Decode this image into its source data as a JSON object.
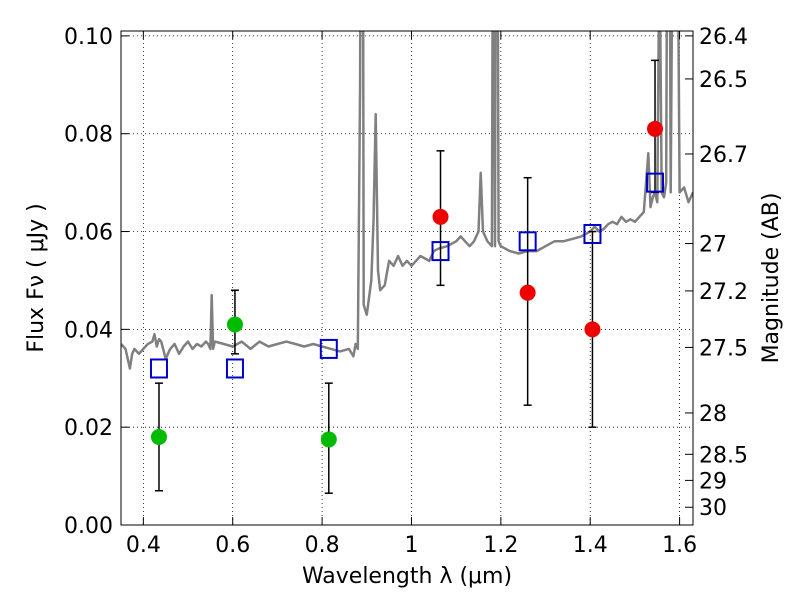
{
  "chart_data": {
    "type": "scatter",
    "title": "",
    "xlabel": "Wavelength  λ (μm)",
    "ylabel": "Flux  Fν  ( μJy )",
    "ylabel_right": "Magnitude (AB)",
    "xlim": [
      0.35,
      1.63
    ],
    "ylim": [
      0.0,
      0.101
    ],
    "grid": true,
    "grid_style": "dotted",
    "x_ticks": [
      {
        "value": 0.4,
        "label": "0.4"
      },
      {
        "value": 0.6,
        "label": "0.6"
      },
      {
        "value": 0.8,
        "label": "0.8"
      },
      {
        "value": 1.0,
        "label": "1"
      },
      {
        "value": 1.2,
        "label": "1.2"
      },
      {
        "value": 1.4,
        "label": "1.4"
      },
      {
        "value": 1.6,
        "label": "1.6"
      }
    ],
    "y_ticks": [
      {
        "value": 0.0,
        "label": "0.00"
      },
      {
        "value": 0.02,
        "label": "0.02"
      },
      {
        "value": 0.04,
        "label": "0.04"
      },
      {
        "value": 0.06,
        "label": "0.06"
      },
      {
        "value": 0.08,
        "label": "0.08"
      },
      {
        "value": 0.1,
        "label": "0.10"
      }
    ],
    "right_ticks": [
      {
        "mag": 26.4,
        "label": "26.4"
      },
      {
        "mag": 26.5,
        "label": "26.5"
      },
      {
        "mag": 26.7,
        "label": "26.7"
      },
      {
        "mag": 27.0,
        "label": "27"
      },
      {
        "mag": 27.2,
        "label": "27.2"
      },
      {
        "mag": 27.5,
        "label": "27.5"
      },
      {
        "mag": 28.0,
        "label": "28"
      },
      {
        "mag": 28.5,
        "label": "28.5"
      },
      {
        "mag": 29.0,
        "label": "29"
      },
      {
        "mag": 30.0,
        "label": "30"
      }
    ],
    "series": [
      {
        "marker": "line",
        "color": "#808080",
        "points": [
          [
            0.35,
            0.037
          ],
          [
            0.36,
            0.036
          ],
          [
            0.365,
            0.034
          ],
          [
            0.37,
            0.032
          ],
          [
            0.375,
            0.035
          ],
          [
            0.38,
            0.036
          ],
          [
            0.39,
            0.035
          ],
          [
            0.4,
            0.036
          ],
          [
            0.41,
            0.037
          ],
          [
            0.42,
            0.0375
          ],
          [
            0.425,
            0.039
          ],
          [
            0.43,
            0.0365
          ],
          [
            0.435,
            0.038
          ],
          [
            0.44,
            0.0375
          ],
          [
            0.45,
            0.034
          ],
          [
            0.46,
            0.036
          ],
          [
            0.47,
            0.037
          ],
          [
            0.48,
            0.035
          ],
          [
            0.49,
            0.0365
          ],
          [
            0.5,
            0.0375
          ],
          [
            0.51,
            0.036
          ],
          [
            0.52,
            0.037
          ],
          [
            0.53,
            0.0365
          ],
          [
            0.54,
            0.0375
          ],
          [
            0.545,
            0.037
          ],
          [
            0.55,
            0.036
          ],
          [
            0.553,
            0.047
          ],
          [
            0.556,
            0.036
          ],
          [
            0.56,
            0.0375
          ],
          [
            0.58,
            0.037
          ],
          [
            0.6,
            0.0365
          ],
          [
            0.62,
            0.0375
          ],
          [
            0.64,
            0.036
          ],
          [
            0.66,
            0.0375
          ],
          [
            0.68,
            0.0365
          ],
          [
            0.7,
            0.037
          ],
          [
            0.72,
            0.0375
          ],
          [
            0.74,
            0.037
          ],
          [
            0.76,
            0.0365
          ],
          [
            0.78,
            0.037
          ],
          [
            0.8,
            0.0365
          ],
          [
            0.82,
            0.036
          ],
          [
            0.84,
            0.0355
          ],
          [
            0.86,
            0.036
          ],
          [
            0.87,
            0.0345
          ],
          [
            0.875,
            0.037
          ],
          [
            0.88,
            0.036
          ],
          [
            0.885,
            0.09
          ],
          [
            0.888,
            0.2
          ],
          [
            0.89,
            0.2
          ],
          [
            0.893,
            0.045
          ],
          [
            0.9,
            0.043
          ],
          [
            0.91,
            0.05
          ],
          [
            0.915,
            0.062
          ],
          [
            0.92,
            0.084
          ],
          [
            0.925,
            0.052
          ],
          [
            0.93,
            0.048
          ],
          [
            0.94,
            0.049
          ],
          [
            0.95,
            0.054
          ],
          [
            0.96,
            0.053
          ],
          [
            0.97,
            0.055
          ],
          [
            0.98,
            0.053
          ],
          [
            0.99,
            0.054
          ],
          [
            1.0,
            0.053
          ],
          [
            1.02,
            0.055
          ],
          [
            1.04,
            0.054
          ],
          [
            1.05,
            0.056
          ],
          [
            1.06,
            0.0565
          ],
          [
            1.08,
            0.057
          ],
          [
            1.1,
            0.058
          ],
          [
            1.11,
            0.059
          ],
          [
            1.12,
            0.058
          ],
          [
            1.13,
            0.057
          ],
          [
            1.14,
            0.058
          ],
          [
            1.15,
            0.06
          ],
          [
            1.155,
            0.072
          ],
          [
            1.16,
            0.06
          ],
          [
            1.17,
            0.058
          ],
          [
            1.18,
            0.057
          ],
          [
            1.183,
            0.15
          ],
          [
            1.187,
            0.057
          ],
          [
            1.19,
            0.2
          ],
          [
            1.195,
            0.058
          ],
          [
            1.2,
            0.057
          ],
          [
            1.22,
            0.056
          ],
          [
            1.24,
            0.0555
          ],
          [
            1.26,
            0.056
          ],
          [
            1.28,
            0.056
          ],
          [
            1.3,
            0.057
          ],
          [
            1.32,
            0.058
          ],
          [
            1.34,
            0.058
          ],
          [
            1.36,
            0.0585
          ],
          [
            1.38,
            0.059
          ],
          [
            1.39,
            0.0595
          ],
          [
            1.4,
            0.06
          ],
          [
            1.41,
            0.061
          ],
          [
            1.42,
            0.06
          ],
          [
            1.43,
            0.0605
          ],
          [
            1.44,
            0.0615
          ],
          [
            1.45,
            0.062
          ],
          [
            1.46,
            0.0615
          ],
          [
            1.47,
            0.063
          ],
          [
            1.48,
            0.062
          ],
          [
            1.49,
            0.0625
          ],
          [
            1.5,
            0.062
          ],
          [
            1.51,
            0.063
          ],
          [
            1.52,
            0.064
          ],
          [
            1.53,
            0.076
          ],
          [
            1.535,
            0.065
          ],
          [
            1.54,
            0.067
          ],
          [
            1.545,
            0.068
          ],
          [
            1.55,
            0.066
          ],
          [
            1.555,
            0.12
          ],
          [
            1.56,
            0.068
          ],
          [
            1.565,
            0.067
          ],
          [
            1.57,
            0.07
          ],
          [
            1.575,
            0.2
          ],
          [
            1.58,
            0.068
          ],
          [
            1.59,
            0.2
          ],
          [
            1.6,
            0.068
          ],
          [
            1.61,
            0.069
          ],
          [
            1.62,
            0.066
          ],
          [
            1.63,
            0.068
          ]
        ]
      },
      {
        "marker": "circle",
        "color": "#00bb00",
        "points": [
          [
            0.435,
            0.018
          ],
          [
            0.605,
            0.041
          ],
          [
            0.815,
            0.0175
          ]
        ],
        "errors": [
          [
            0.435,
            0.007,
            0.029
          ],
          [
            0.605,
            0.035,
            0.048
          ],
          [
            0.815,
            0.0065,
            0.029
          ]
        ]
      },
      {
        "marker": "circle",
        "color": "#ee0000",
        "points": [
          [
            1.065,
            0.063
          ],
          [
            1.26,
            0.0475
          ],
          [
            1.405,
            0.04
          ],
          [
            1.545,
            0.081
          ]
        ],
        "errors": [
          [
            1.065,
            0.049,
            0.0765
          ],
          [
            1.26,
            0.0245,
            0.071
          ],
          [
            1.405,
            0.02,
            0.06
          ],
          [
            1.545,
            0.068,
            0.095
          ]
        ]
      },
      {
        "marker": "square",
        "color": "#0000cc",
        "points": [
          [
            0.435,
            0.032
          ],
          [
            0.605,
            0.032
          ],
          [
            0.815,
            0.036
          ],
          [
            1.065,
            0.056
          ],
          [
            1.26,
            0.058
          ],
          [
            1.405,
            0.0595
          ],
          [
            1.545,
            0.07
          ]
        ]
      }
    ]
  }
}
